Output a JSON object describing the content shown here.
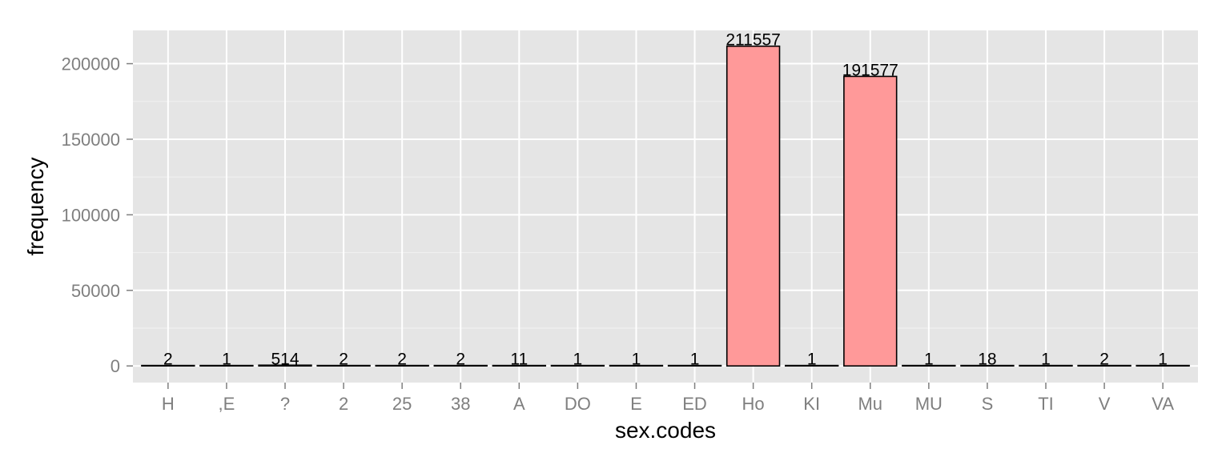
{
  "chart_data": {
    "type": "bar",
    "categories": [
      "H",
      ",E",
      "?",
      "2",
      "25",
      "38",
      "A",
      "DO",
      "E",
      "ED",
      "Ho",
      "KI",
      "Mu",
      "MU",
      "S",
      "TI",
      "V",
      "VA"
    ],
    "values": [
      2,
      1,
      514,
      2,
      2,
      2,
      11,
      1,
      1,
      1,
      211557,
      1,
      191577,
      1,
      18,
      1,
      2,
      1
    ],
    "data_labels": [
      "2",
      "1",
      "514",
      "2",
      "2",
      "2",
      "11",
      "1",
      "1",
      "1",
      "211557",
      "1",
      "191577",
      "1",
      "18",
      "1",
      "2",
      "1"
    ],
    "xlabel": "sex.codes",
    "ylabel": "frequency",
    "ylim": [
      -11000,
      222000
    ],
    "yticks": [
      0,
      50000,
      100000,
      150000,
      200000
    ],
    "ytick_labels": [
      "0",
      "50000",
      "100000",
      "150000",
      "200000"
    ],
    "grid": true,
    "legend": "none",
    "colors": {
      "bar_fill": "#ff9999",
      "bar_outline": "#000000",
      "panel_background": "#e5e5e5",
      "grid_major": "#ffffff",
      "grid_minor": "#f2f2f2",
      "tick_label": "#7f7f7f"
    }
  }
}
